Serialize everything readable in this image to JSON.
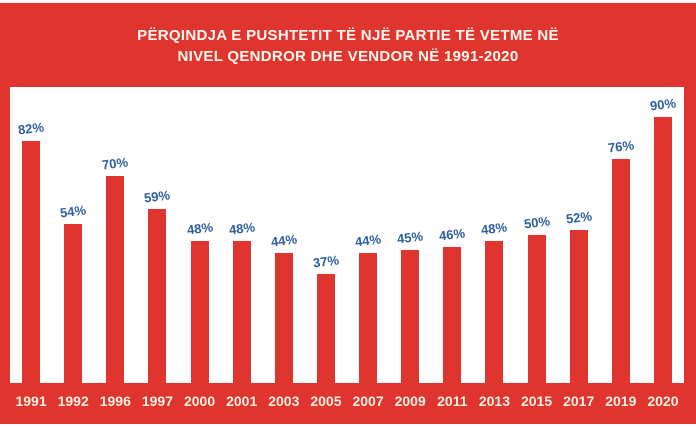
{
  "title": {
    "line1": "PËRQINDJA E PUSHTETIT TË NJË PARTIE TË VETME NË",
    "line2": "NIVEL QENDROR DHE VENDOR NË 1991-2020"
  },
  "colors": {
    "background_red": "#e0352e",
    "bar_red": "#e0352e",
    "value_label_blue": "#2e5fa3",
    "year_label_white": "#f7f0e2",
    "title_white": "#fdf8ef",
    "panel_white": "#ffffff"
  },
  "chart_data": {
    "type": "bar",
    "title": "PËRQINDJA E PUSHTETIT TË NJË PARTIE TË VETME NË NIVEL QENDROR DHE VENDOR NË 1991-2020",
    "categories": [
      "1991",
      "1992",
      "1996",
      "1997",
      "2000",
      "2001",
      "2003",
      "2005",
      "2007",
      "2009",
      "2011",
      "2013",
      "2015",
      "2017",
      "2019",
      "2020"
    ],
    "values": [
      82,
      54,
      70,
      59,
      48,
      48,
      44,
      37,
      44,
      45,
      46,
      48,
      50,
      52,
      76,
      90
    ],
    "value_labels": [
      "82%",
      "54%",
      "70%",
      "59%",
      "48%",
      "48%",
      "44%",
      "37%",
      "44%",
      "45%",
      "46%",
      "48%",
      "50%",
      "52%",
      "76%",
      "90%"
    ],
    "xlabel": "",
    "ylabel": "",
    "ylim": [
      0,
      100
    ],
    "grid": false,
    "legend": null,
    "data_labels": "above-bars"
  }
}
